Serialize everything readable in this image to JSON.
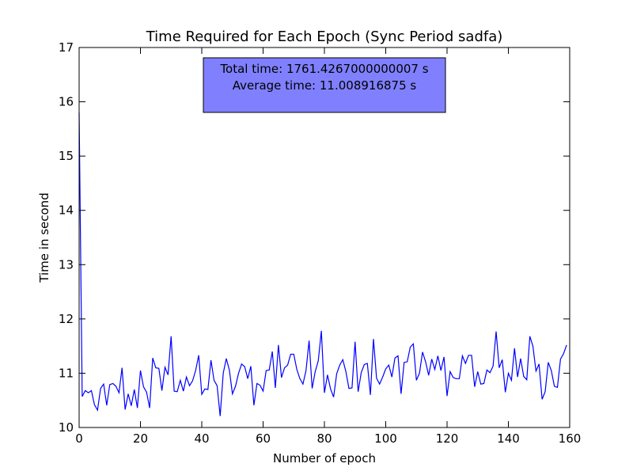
{
  "chart_data": {
    "type": "line",
    "title": "Time Required for Each Epoch (Sync Period sadfa)",
    "xlabel": "Number of epoch",
    "ylabel": "Time in second",
    "xlim": [
      0,
      160
    ],
    "ylim": [
      10,
      17
    ],
    "xticks": [
      "0",
      "20",
      "40",
      "60",
      "80",
      "100",
      "120",
      "140",
      "160"
    ],
    "yticks": [
      "10",
      "11",
      "12",
      "13",
      "14",
      "15",
      "16",
      "17"
    ],
    "grid": false,
    "annotation": {
      "line1": "Total time: 1761.4267000000007 s",
      "line2": "Average time: 11.008916875 s",
      "box_color": "#8080ff"
    },
    "series": [
      {
        "color": "#0000ff",
        "x": [
          0,
          1,
          2,
          3,
          4,
          5,
          6,
          7,
          8,
          9,
          10,
          11,
          12,
          13,
          14,
          15,
          16,
          17,
          18,
          19,
          20,
          21,
          22,
          23,
          24,
          25,
          26,
          27,
          28,
          29,
          30,
          31,
          32,
          33,
          34,
          35,
          36,
          37,
          38,
          39,
          40,
          41,
          42,
          43,
          44,
          45,
          46,
          47,
          48,
          49,
          50,
          51,
          52,
          53,
          54,
          55,
          56,
          57,
          58,
          59,
          60,
          61,
          62,
          63,
          64,
          65,
          66,
          67,
          68,
          69,
          70,
          71,
          72,
          73,
          74,
          75,
          76,
          77,
          78,
          79,
          80,
          81,
          82,
          83,
          84,
          85,
          86,
          87,
          88,
          89,
          90,
          91,
          92,
          93,
          94,
          95,
          96,
          97,
          98,
          99,
          100,
          101,
          102,
          103,
          104,
          105,
          106,
          107,
          108,
          109,
          110,
          111,
          112,
          113,
          114,
          115,
          116,
          117,
          118,
          119,
          120,
          121,
          122,
          123,
          124,
          125,
          126,
          127,
          128,
          129,
          130,
          131,
          132,
          133,
          134,
          135,
          136,
          137,
          138,
          139,
          140,
          141,
          142,
          143,
          144,
          145,
          146,
          147,
          148,
          149,
          150,
          151,
          152,
          153,
          154,
          155,
          156,
          157,
          158,
          159
        ],
        "values": [
          15.8,
          10.57,
          10.68,
          10.64,
          10.68,
          10.42,
          10.32,
          10.72,
          10.8,
          10.41,
          10.79,
          10.81,
          10.76,
          10.64,
          11.1,
          10.33,
          10.62,
          10.4,
          10.7,
          10.36,
          11.05,
          10.75,
          10.65,
          10.36,
          11.28,
          11.1,
          11.09,
          10.68,
          11.11,
          10.97,
          11.68,
          10.67,
          10.66,
          10.87,
          10.67,
          10.93,
          10.77,
          10.86,
          11.05,
          11.33,
          10.61,
          10.71,
          10.7,
          11.24,
          10.87,
          10.77,
          10.21,
          11.0,
          11.27,
          11.06,
          10.62,
          10.76,
          11.0,
          11.17,
          11.12,
          10.9,
          11.13,
          10.41,
          10.81,
          10.78,
          10.67,
          11.05,
          11.06,
          11.4,
          10.73,
          11.52,
          10.92,
          11.1,
          11.15,
          11.35,
          11.35,
          11.07,
          10.9,
          10.8,
          11.05,
          11.6,
          10.72,
          11.03,
          11.23,
          11.78,
          10.64,
          10.97,
          10.71,
          10.56,
          10.99,
          11.15,
          11.25,
          11.03,
          10.72,
          10.73,
          11.58,
          10.66,
          11.01,
          11.16,
          11.18,
          10.6,
          11.63,
          10.91,
          10.8,
          10.93,
          11.08,
          11.15,
          10.93,
          11.28,
          11.32,
          10.62,
          11.2,
          11.21,
          11.48,
          11.54,
          10.87,
          11.0,
          11.39,
          11.21,
          10.96,
          11.26,
          11.07,
          11.32,
          11.05,
          11.3,
          10.58,
          11.03,
          10.92,
          10.9,
          10.9,
          11.32,
          11.18,
          11.33,
          11.33,
          10.75,
          11.03,
          10.8,
          10.81,
          11.06,
          11.01,
          11.13,
          11.77,
          11.1,
          11.25,
          10.65,
          11.0,
          10.87,
          11.46,
          10.93,
          11.27,
          10.94,
          10.88,
          11.68,
          11.5,
          11.04,
          11.17,
          10.52,
          10.66,
          11.2,
          11.05,
          10.76,
          10.74,
          11.26,
          11.36,
          11.52
        ]
      }
    ]
  }
}
